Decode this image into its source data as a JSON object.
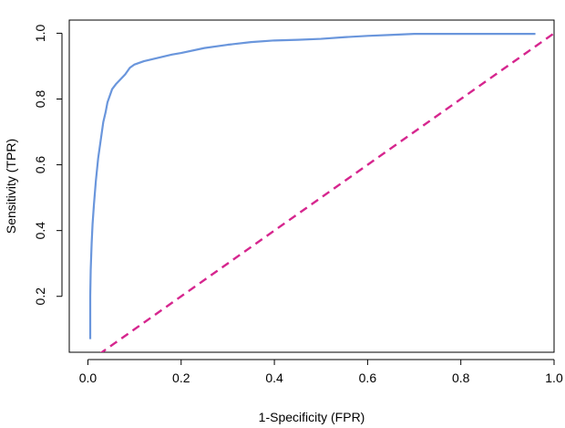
{
  "chart_data": {
    "type": "line",
    "title": "",
    "xlabel": "1-Specificity (FPR)",
    "ylabel": "Sensitivity (TPR)",
    "xlim": [
      -0.04,
      1.0
    ],
    "ylim": [
      0.03,
      1.04
    ],
    "x_ticks": [
      0.0,
      0.2,
      0.4,
      0.6,
      0.8,
      1.0
    ],
    "x_tick_labels": [
      "0.0",
      "0.2",
      "0.4",
      "0.6",
      "0.8",
      "1.0"
    ],
    "y_ticks": [
      0.2,
      0.4,
      0.6,
      0.8,
      1.0
    ],
    "y_tick_labels": [
      "0.2",
      "0.4",
      "0.6",
      "0.8",
      "1.0"
    ],
    "grid": false,
    "legend": "none",
    "series": [
      {
        "kind": "roc-curve",
        "color": "#6a96dc",
        "x": [
          0.005,
          0.005,
          0.006,
          0.008,
          0.01,
          0.013,
          0.017,
          0.022,
          0.028,
          0.033,
          0.038,
          0.042,
          0.047,
          0.052,
          0.06,
          0.07,
          0.08,
          0.09,
          0.1,
          0.12,
          0.15,
          0.18,
          0.2,
          0.25,
          0.3,
          0.35,
          0.4,
          0.45,
          0.5,
          0.55,
          0.6,
          0.65,
          0.7,
          0.8,
          0.9,
          0.96
        ],
        "y": [
          0.07,
          0.2,
          0.28,
          0.36,
          0.42,
          0.48,
          0.55,
          0.62,
          0.68,
          0.73,
          0.76,
          0.79,
          0.81,
          0.83,
          0.845,
          0.86,
          0.875,
          0.895,
          0.905,
          0.915,
          0.925,
          0.935,
          0.94,
          0.955,
          0.965,
          0.973,
          0.978,
          0.98,
          0.983,
          0.988,
          0.992,
          0.995,
          0.998,
          0.998,
          0.998,
          0.998
        ]
      },
      {
        "kind": "reference-diagonal",
        "color": "#d6268e",
        "x": [
          0.0,
          1.0
        ],
        "y": [
          0.0,
          1.0
        ]
      }
    ]
  }
}
